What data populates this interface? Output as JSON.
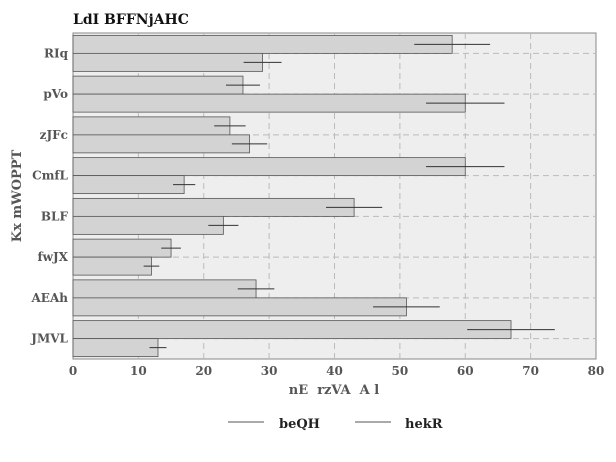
{
  "chart_data": {
    "type": "bar",
    "orientation": "horizontal",
    "title": "LdI BFFNjAHC",
    "xlabel": "nE  rzVA  A l",
    "ylabel": "Kx mWOPPT",
    "categories": [
      "RIq",
      "pVo",
      "zJFc",
      "CmfL",
      "BLF",
      "fwJX",
      "AEAh",
      "JMVL"
    ],
    "xlim": [
      0,
      80
    ],
    "xticks": [
      "0",
      "10",
      "20",
      "30",
      "40",
      "50",
      "60",
      "70",
      "80"
    ],
    "grid": true,
    "legend_position": "bottom-center",
    "series": [
      {
        "name": "beQH",
        "color": "#d3d3d3",
        "values": [
          58,
          26,
          24,
          60,
          43,
          15,
          28,
          67
        ],
        "errors": [
          5.8,
          2.6,
          2.4,
          6.0,
          4.3,
          1.5,
          2.8,
          6.7
        ]
      },
      {
        "name": "hekR",
        "color": "#d3d3d3",
        "values": [
          29,
          60,
          27,
          17,
          23,
          12,
          51,
          13
        ],
        "errors": [
          2.9,
          6.0,
          2.7,
          1.7,
          2.3,
          1.2,
          5.1,
          1.3
        ]
      }
    ]
  }
}
